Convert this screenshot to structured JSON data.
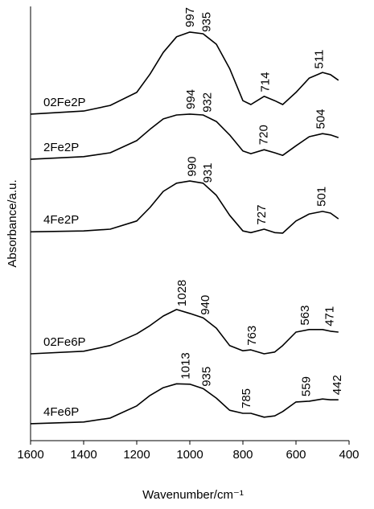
{
  "chart_data": {
    "type": "line",
    "xlabel": "Wavenumber/cm⁻¹",
    "ylabel": "Absorbance/a.u.",
    "xlim": [
      1600,
      400
    ],
    "ylim": [
      0,
      100
    ],
    "xticks": [
      1600,
      1400,
      1200,
      1000,
      800,
      600,
      400
    ],
    "x": [
      1600,
      1400,
      1300,
      1200,
      1150,
      1100,
      1050,
      1000,
      950,
      900,
      850,
      800,
      770,
      720,
      680,
      650,
      600,
      550,
      500,
      470,
      440
    ],
    "series": [
      {
        "name": "02Fe2P",
        "color": "#000000",
        "peaks": [
          997,
          935,
          714,
          511
        ],
        "values": [
          75.2,
          75.9,
          77.2,
          80.2,
          84.4,
          89.4,
          93.0,
          94.1,
          93.7,
          91.3,
          85.7,
          78.3,
          77.4,
          79.3,
          78.3,
          77.4,
          80.2,
          83.5,
          84.8,
          84.3,
          83.0
        ]
      },
      {
        "name": "2Fe2P",
        "color": "#000000",
        "peaks": [
          994,
          932,
          720,
          504
        ],
        "values": [
          64.8,
          65.4,
          66.3,
          69.1,
          71.7,
          74.1,
          75.0,
          75.2,
          75.0,
          73.5,
          70.4,
          66.7,
          66.1,
          67.0,
          66.3,
          65.7,
          67.9,
          70.0,
          70.7,
          70.4,
          69.8
        ]
      },
      {
        "name": "4Fe2P",
        "color": "#000000",
        "peaks": [
          990,
          931,
          727,
          501
        ],
        "values": [
          48.1,
          48.3,
          48.7,
          50.6,
          53.7,
          57.4,
          59.3,
          59.8,
          59.3,
          56.5,
          51.9,
          48.3,
          47.9,
          48.7,
          47.9,
          47.8,
          50.6,
          52.2,
          52.8,
          52.4,
          51.1
        ]
      },
      {
        "name": "02Fe6P",
        "color": "#000000",
        "peaks": [
          1028,
          940,
          763,
          563,
          471
        ],
        "values": [
          20.0,
          20.6,
          21.9,
          24.6,
          26.5,
          28.7,
          30.2,
          29.3,
          28.3,
          25.9,
          21.9,
          20.7,
          20.9,
          20.0,
          20.4,
          21.9,
          25.0,
          25.6,
          25.6,
          25.2,
          25.0
        ]
      },
      {
        "name": "4Fe6P",
        "color": "#000000",
        "peaks": [
          1013,
          935,
          785,
          559,
          442
        ],
        "values": [
          3.9,
          4.3,
          5.2,
          8.0,
          10.4,
          12.2,
          13.1,
          13.0,
          12.0,
          9.8,
          7.0,
          6.3,
          6.3,
          5.4,
          5.7,
          6.7,
          8.9,
          9.1,
          9.6,
          9.4,
          9.4
        ]
      }
    ]
  }
}
